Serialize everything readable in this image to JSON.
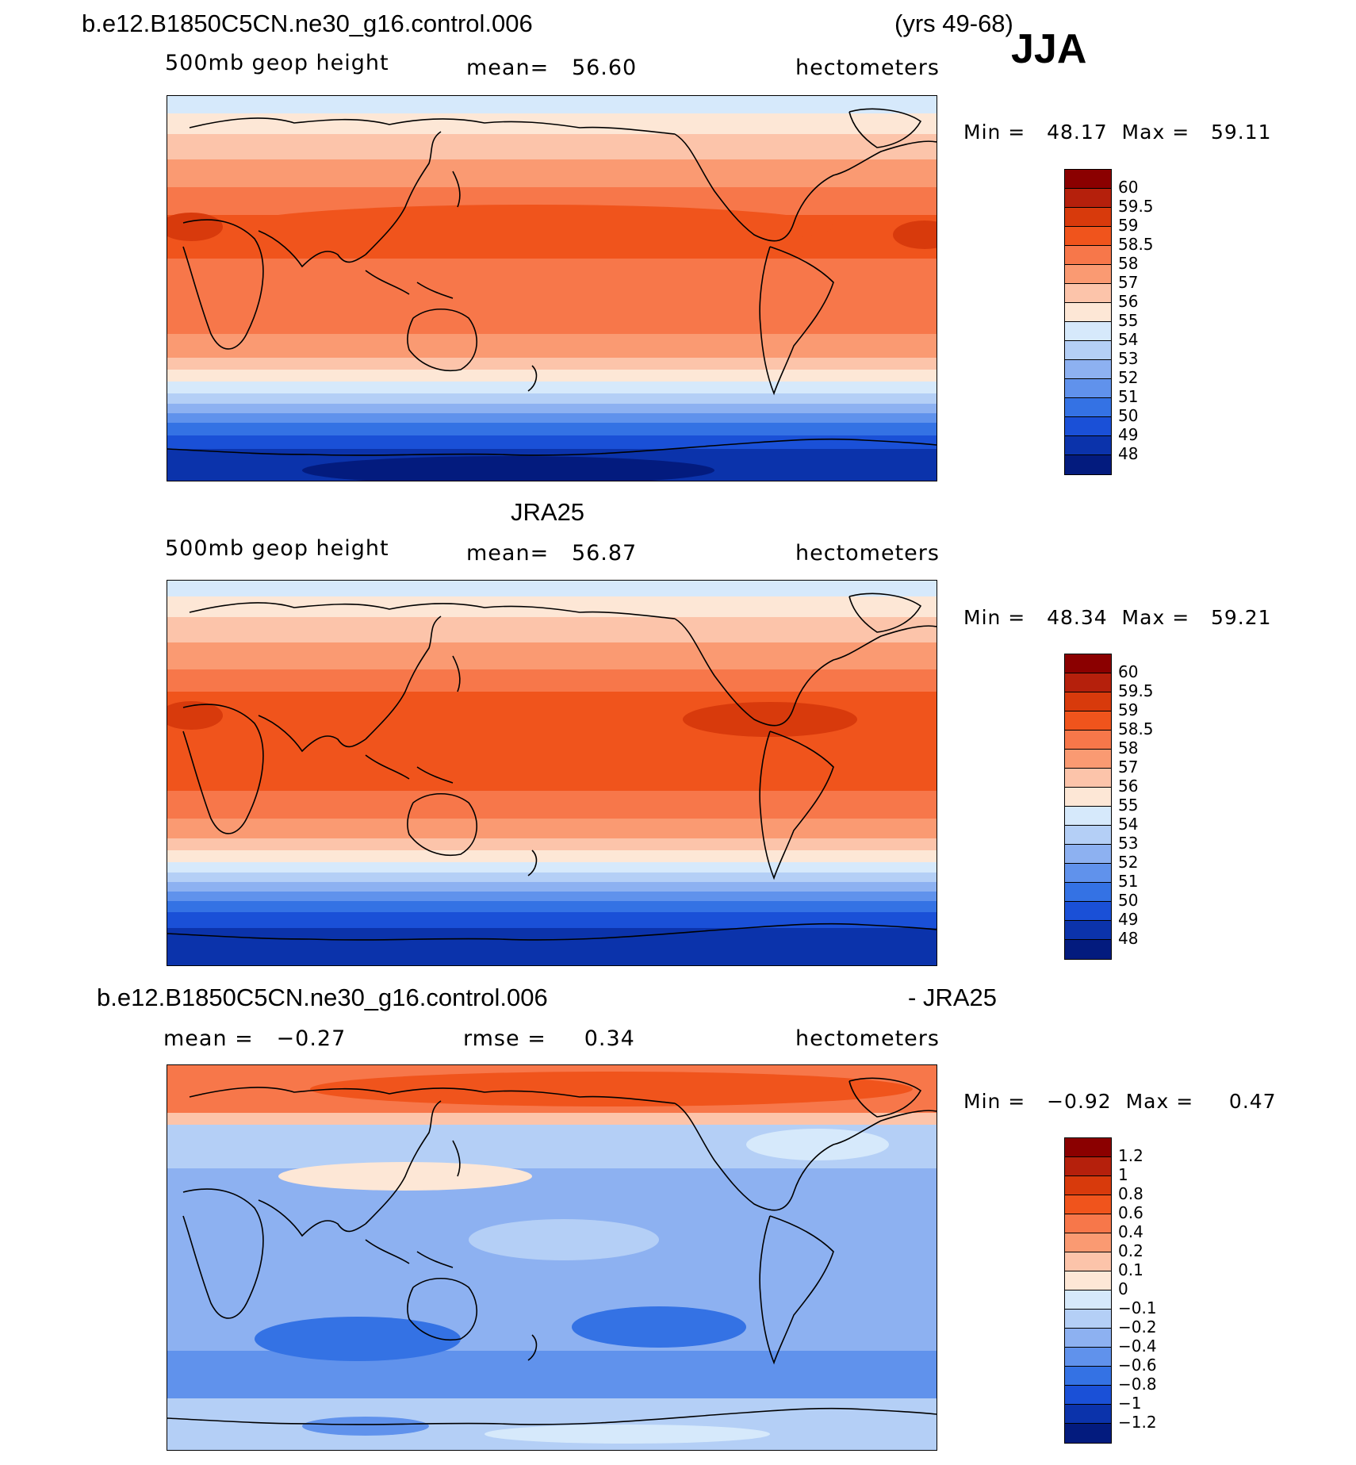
{
  "season": "JJA",
  "panels": [
    {
      "case": "b.e12.B1850C5CN.ne30_g16.control.006",
      "case_right": "(yrs 49-68)",
      "left": "500mb geop height",
      "center": "mean=   56.60",
      "units": "hectometers",
      "minmax": "Min =   48.17  Max =   59.11",
      "levels": [
        "60",
        "59.5",
        "59",
        "58.5",
        "58",
        "57",
        "56",
        "55",
        "54",
        "53",
        "52",
        "51",
        "50",
        "49",
        "48"
      ]
    },
    {
      "case": "JRA25",
      "case_right": "",
      "left": "500mb geop height",
      "center": "mean=   56.87",
      "units": "hectometers",
      "minmax": "Min =   48.34  Max =   59.21",
      "levels": [
        "60",
        "59.5",
        "59",
        "58.5",
        "58",
        "57",
        "56",
        "55",
        "54",
        "53",
        "52",
        "51",
        "50",
        "49",
        "48"
      ]
    },
    {
      "case": "b.e12.B1850C5CN.ne30_g16.control.006",
      "case_right": "- JRA25",
      "left": "mean =   −0.27",
      "center": "rmse =     0.34",
      "units": "hectometers",
      "minmax": "Min =   −0.92  Max =     0.47",
      "levels": [
        "1.2",
        "1",
        "0.8",
        "0.6",
        "0.4",
        "0.2",
        "0.1",
        "0",
        "−0.1",
        "−0.2",
        "−0.4",
        "−0.6",
        "−0.8",
        "−1",
        "−1.2"
      ]
    }
  ],
  "colors": {
    "scale": [
      "#8b0000",
      "#b5200c",
      "#d83a0c",
      "#f0541c",
      "#f7774a",
      "#fa9a72",
      "#fcc4aa",
      "#fde7d6",
      "#d6e9fb",
      "#b4cff6",
      "#8db1f1",
      "#6092ec",
      "#3472e4",
      "#1a50d7",
      "#0b33ab",
      "#031b7e"
    ],
    "land": "#000000"
  }
}
